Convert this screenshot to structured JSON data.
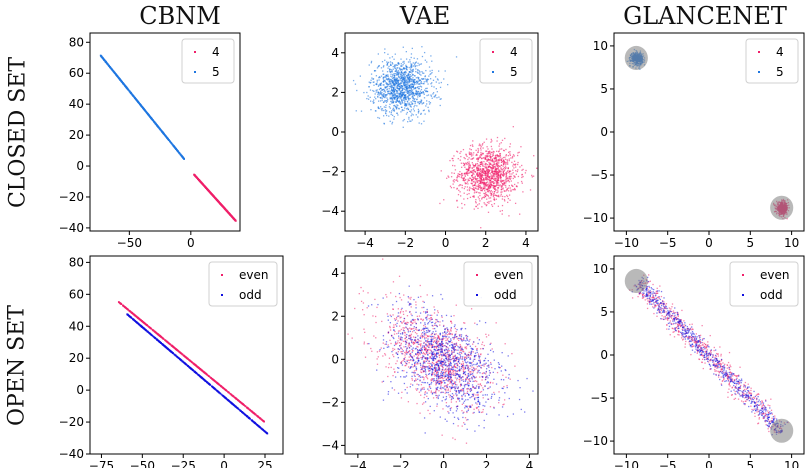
{
  "column_titles": [
    "CBNM",
    "VAE",
    "GLANCENET"
  ],
  "row_titles": [
    "CLOSED SET",
    "OPEN SET"
  ],
  "colors": {
    "red": "#f0206a",
    "blue": "#1f77e0",
    "dark_blue": "#1010e0",
    "halo": "#7f7f7f"
  },
  "chart_data": [
    {
      "type": "scatter",
      "panel": "closed-cbnm",
      "xlim": [
        -82,
        40
      ],
      "ylim": [
        -42,
        86
      ],
      "xticks": [
        -50,
        0
      ],
      "yticks": [
        -40,
        -20,
        0,
        20,
        40,
        60,
        80
      ],
      "legend": {
        "position": "top-right",
        "entries": [
          "4",
          "5"
        ]
      },
      "series": [
        {
          "name": "4",
          "color": "red",
          "shape": "line",
          "from": [
            2,
            -5
          ],
          "to": [
            36,
            -35
          ]
        },
        {
          "name": "5",
          "color": "blue",
          "shape": "line",
          "from": [
            -74,
            72
          ],
          "to": [
            -6,
            5
          ]
        }
      ]
    },
    {
      "type": "scatter",
      "panel": "closed-vae",
      "xlim": [
        -5,
        4.6
      ],
      "ylim": [
        -5,
        5
      ],
      "xticks": [
        -4,
        -2,
        0,
        2,
        4
      ],
      "yticks": [
        -4,
        -2,
        0,
        2,
        4
      ],
      "legend": {
        "position": "top-right",
        "entries": [
          "4",
          "5"
        ]
      },
      "series": [
        {
          "name": "4",
          "color": "red",
          "shape": "blob",
          "center": [
            2.1,
            -2.1
          ],
          "spread": [
            0.75,
            0.7
          ]
        },
        {
          "name": "5",
          "color": "blue",
          "shape": "blob",
          "center": [
            -2.2,
            2.3
          ],
          "spread": [
            0.75,
            0.7
          ]
        }
      ]
    },
    {
      "type": "scatter",
      "panel": "closed-glancenet",
      "xlim": [
        -11.5,
        11.5
      ],
      "ylim": [
        -11.5,
        11.5
      ],
      "xticks": [
        -10,
        -5,
        0,
        5,
        10
      ],
      "yticks": [
        -10,
        -5,
        0,
        5,
        10
      ],
      "legend": {
        "position": "top-right",
        "entries": [
          "4",
          "5"
        ]
      },
      "series": [
        {
          "name": "4",
          "color": "red",
          "shape": "blob",
          "center": [
            8.8,
            -8.8
          ],
          "spread": [
            0.35,
            0.35
          ],
          "halo_radius": 1.4
        },
        {
          "name": "5",
          "color": "blue",
          "shape": "blob",
          "center": [
            -8.8,
            8.6
          ],
          "spread": [
            0.35,
            0.35
          ],
          "halo_radius": 1.4
        }
      ]
    },
    {
      "type": "scatter",
      "panel": "open-cbnm",
      "xlim": [
        -82,
        36
      ],
      "ylim": [
        -40,
        84
      ],
      "xticks": [
        -75,
        -50,
        -25,
        0,
        25
      ],
      "yticks": [
        -40,
        -20,
        0,
        20,
        40,
        60,
        80
      ],
      "legend": {
        "position": "top-right",
        "entries": [
          "even",
          "odd"
        ]
      },
      "series": [
        {
          "name": "even",
          "color": "red",
          "shape": "line",
          "from": [
            -65,
            55
          ],
          "to": [
            24,
            -20
          ]
        },
        {
          "name": "odd",
          "color": "dark_blue",
          "shape": "line",
          "from": [
            -60,
            49
          ],
          "to": [
            26,
            -26
          ]
        }
      ]
    },
    {
      "type": "scatter",
      "panel": "open-vae",
      "xlim": [
        -4.6,
        4.4
      ],
      "ylim": [
        -4.4,
        4.8
      ],
      "xticks": [
        -4,
        -2,
        0,
        2,
        4
      ],
      "yticks": [
        -4,
        -2,
        0,
        2,
        4
      ],
      "legend": {
        "position": "top-right",
        "entries": [
          "even",
          "odd"
        ]
      },
      "series": [
        {
          "name": "even",
          "color": "red",
          "shape": "band",
          "from": [
            -2.4,
            1.8
          ],
          "to": [
            1.8,
            -1.6
          ],
          "width": 0.9
        },
        {
          "name": "odd",
          "color": "dark_blue",
          "shape": "band",
          "from": [
            -2.0,
            1.6
          ],
          "to": [
            2.0,
            -1.8
          ],
          "width": 0.9
        }
      ]
    },
    {
      "type": "scatter",
      "panel": "open-glancenet",
      "xlim": [
        -11.5,
        11.5
      ],
      "ylim": [
        -11.5,
        11.5
      ],
      "xticks": [
        -10,
        -5,
        0,
        5,
        10
      ],
      "yticks": [
        -10,
        -5,
        0,
        5,
        10
      ],
      "legend": {
        "position": "top-right",
        "entries": [
          "even",
          "odd"
        ]
      },
      "series": [
        {
          "name": "even",
          "color": "red",
          "shape": "band",
          "from": [
            -8.8,
            8.6
          ],
          "to": [
            8.8,
            -8.8
          ],
          "width": 0.6
        },
        {
          "name": "odd",
          "color": "dark_blue",
          "shape": "band",
          "from": [
            -8.8,
            8.6
          ],
          "to": [
            8.8,
            -8.8
          ],
          "width": 0.45
        }
      ],
      "halos": [
        {
          "center": [
            -8.8,
            8.6
          ],
          "radius": 1.4
        },
        {
          "center": [
            8.8,
            -8.8
          ],
          "radius": 1.4
        }
      ]
    }
  ]
}
